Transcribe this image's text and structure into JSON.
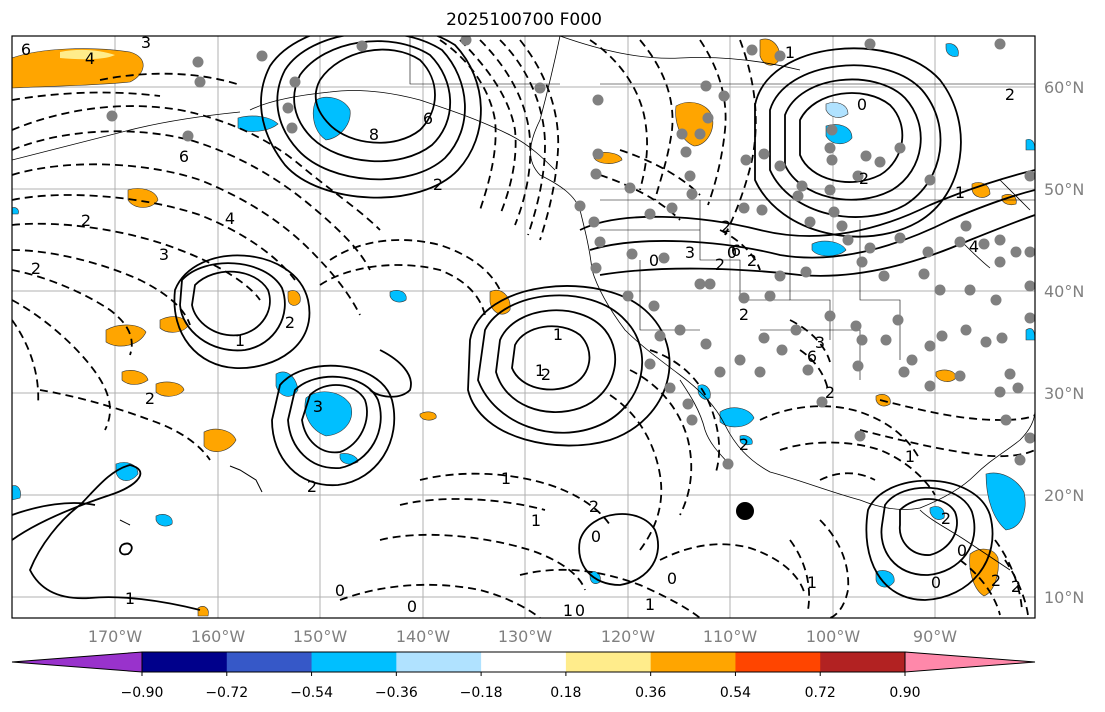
{
  "title": "2025100700 F000",
  "latitude_labels": [
    "60°N",
    "50°N",
    "40°N",
    "30°N",
    "20°N",
    "10°N"
  ],
  "longitude_labels": [
    "170°W",
    "160°W",
    "150°W",
    "140°W",
    "130°W",
    "120°W",
    "110°W",
    "100°W",
    "90°W"
  ],
  "colorbar": {
    "ticks": [
      "−0.90",
      "−0.72",
      "−0.54",
      "−0.36",
      "−0.18",
      "0.18",
      "0.36",
      "0.54",
      "0.72",
      "0.90"
    ],
    "colors": [
      "#9932cc",
      "#00008b",
      "#3658c8",
      "#00bfff",
      "#b0e2ff",
      "#ffffff",
      "#ffec8b",
      "#ffa500",
      "#ff4500",
      "#b22222",
      "#ff88aa"
    ]
  },
  "contour_labels": [
    "6",
    "4",
    "3",
    "8",
    "6",
    "2",
    "2",
    "4",
    "6",
    "3",
    "2",
    "2",
    "1",
    "2",
    "3",
    "2",
    "2",
    "1",
    "0",
    "3",
    "2",
    "2",
    "1",
    "0",
    "2",
    "2",
    "1",
    "4",
    "2",
    "6",
    "2",
    "0",
    "6",
    "3",
    "2",
    "2",
    "2",
    "2",
    "2",
    "2",
    "0",
    "0",
    "1",
    "1",
    "0",
    "1",
    "0",
    "1",
    "1",
    "1",
    "1",
    "1",
    "0",
    "0",
    "0"
  ]
}
